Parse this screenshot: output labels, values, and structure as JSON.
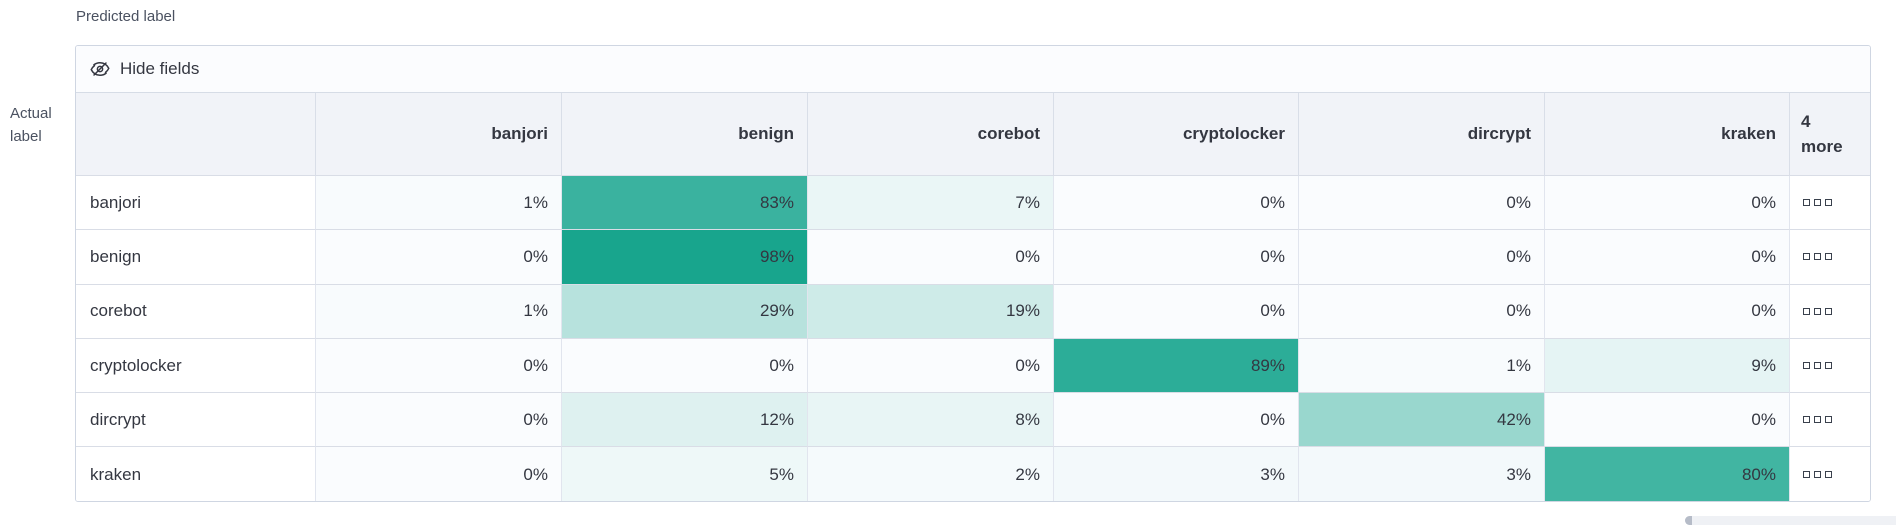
{
  "axis": {
    "predicted": "Predicted label",
    "actual_line1": "Actual",
    "actual_line2": "label"
  },
  "toolbar": {
    "hide_fields_label": "Hide fields"
  },
  "grid": {
    "columns": [
      "banjori",
      "benign",
      "corebot",
      "cryptolocker",
      "dircrypt",
      "kraken"
    ],
    "more_column": {
      "line1": "4",
      "line2": "more"
    },
    "rows": [
      {
        "label": "banjori",
        "values": [
          1,
          83,
          7,
          0,
          0,
          0
        ]
      },
      {
        "label": "benign",
        "values": [
          0,
          98,
          0,
          0,
          0,
          0
        ]
      },
      {
        "label": "corebot",
        "values": [
          1,
          29,
          19,
          0,
          0,
          0
        ]
      },
      {
        "label": "cryptolocker",
        "values": [
          0,
          0,
          0,
          89,
          1,
          9
        ]
      },
      {
        "label": "dircrypt",
        "values": [
          0,
          12,
          8,
          0,
          42,
          0
        ]
      },
      {
        "label": "kraken",
        "values": [
          0,
          5,
          2,
          3,
          3,
          80
        ]
      }
    ],
    "value_suffix": "%"
  },
  "icons": {
    "hide_fields": "eye-closed-icon",
    "more_cell": "boxes-horizontal-icon"
  },
  "colors": {
    "scale_zero": "#fafcfe",
    "scale_one": "#13a38b",
    "header_bg": "#f1f3f8",
    "border": "#d9dde6",
    "text": "#343741"
  },
  "chart_data": {
    "type": "heatmap",
    "xlabel": "Predicted label",
    "ylabel": "Actual label",
    "x": [
      "banjori",
      "benign",
      "corebot",
      "cryptolocker",
      "dircrypt",
      "kraken"
    ],
    "y": [
      "banjori",
      "benign",
      "corebot",
      "cryptolocker",
      "dircrypt",
      "kraken"
    ],
    "values": [
      [
        1,
        83,
        7,
        0,
        0,
        0
      ],
      [
        0,
        98,
        0,
        0,
        0,
        0
      ],
      [
        1,
        29,
        19,
        0,
        0,
        0
      ],
      [
        0,
        0,
        0,
        89,
        1,
        9
      ],
      [
        0,
        12,
        8,
        0,
        42,
        0
      ],
      [
        0,
        5,
        2,
        3,
        3,
        80
      ]
    ],
    "unit": "%",
    "hidden_columns_badge": "4 more",
    "legend": "off",
    "color_scale": [
      "#fafcfe",
      "#13a38b"
    ]
  }
}
